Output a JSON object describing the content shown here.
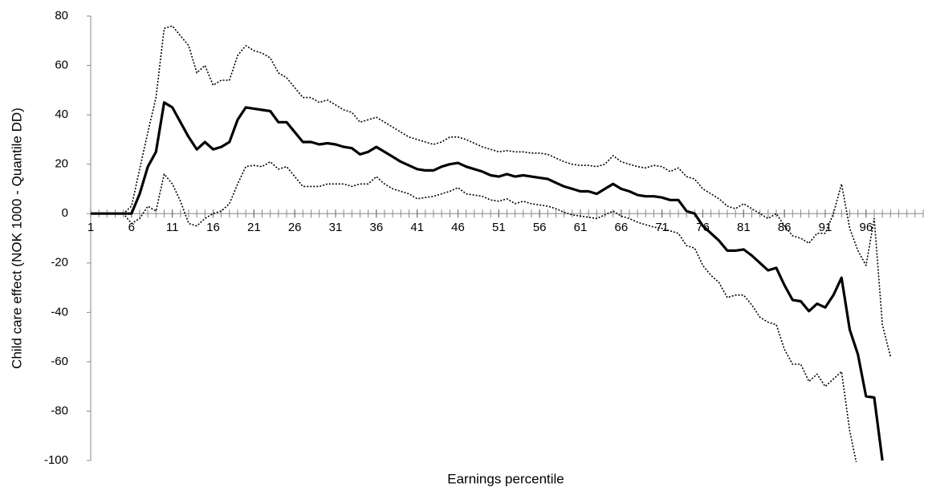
{
  "chart_data": {
    "type": "line",
    "x_label": "Earnings percentile",
    "y_label": "Child care effect (NOK 1000 - Quantile DD)",
    "x": [
      1,
      2,
      3,
      4,
      5,
      6,
      7,
      8,
      9,
      10,
      11,
      12,
      13,
      14,
      15,
      16,
      17,
      18,
      19,
      20,
      21,
      22,
      23,
      24,
      25,
      26,
      27,
      28,
      29,
      30,
      31,
      32,
      33,
      34,
      35,
      36,
      37,
      38,
      39,
      40,
      41,
      42,
      43,
      44,
      45,
      46,
      47,
      48,
      49,
      50,
      51,
      52,
      53,
      54,
      55,
      56,
      57,
      58,
      59,
      60,
      61,
      62,
      63,
      64,
      65,
      66,
      67,
      68,
      69,
      70,
      71,
      72,
      73,
      74,
      75,
      76,
      77,
      78,
      79,
      80,
      81,
      82,
      83,
      84,
      85,
      86,
      87,
      88,
      89,
      90,
      91,
      92,
      93,
      94,
      95,
      96,
      97,
      98,
      99
    ],
    "series": [
      {
        "color": "#000000",
        "style": "solid",
        "values": [
          0,
          0,
          0,
          0,
          0,
          0,
          8,
          19,
          25,
          45,
          43,
          37,
          31,
          26,
          29,
          26,
          27,
          29,
          38,
          43,
          42.5,
          42,
          41.5,
          37,
          37,
          33,
          29,
          29,
          28,
          28.5,
          28,
          27,
          26.5,
          24,
          25,
          27,
          25,
          23,
          21,
          19.5,
          18,
          17.5,
          17.5,
          19,
          20,
          20.5,
          19,
          18,
          17,
          15.5,
          15,
          16,
          15,
          15.5,
          15,
          14.5,
          14,
          12.5,
          11,
          10,
          9,
          9,
          8,
          10,
          12,
          10,
          9,
          7.5,
          7,
          7,
          6.5,
          5.5,
          5.5,
          1,
          0,
          -5,
          -8,
          -11,
          -15,
          -15,
          -14.5,
          -17,
          -20,
          -23,
          -22,
          -29,
          -35,
          -35.5,
          -39.5,
          -36.5,
          -38,
          -33,
          -26,
          -47,
          -57,
          -74,
          -74.5,
          -100,
          null
        ]
      },
      {
        "color": "#000000",
        "style": "dotted",
        "values": [
          0,
          0,
          0,
          0,
          0,
          3,
          18,
          33,
          47,
          75,
          76,
          72,
          68,
          57,
          60,
          52,
          54,
          54,
          64,
          68,
          66,
          65,
          63,
          57,
          55,
          51,
          47,
          47,
          45,
          46,
          44,
          42,
          41,
          37,
          38,
          39,
          37,
          35,
          33,
          31,
          30,
          29,
          28,
          29,
          31,
          31,
          30,
          28.5,
          27,
          26,
          25,
          25.5,
          25,
          25,
          24.5,
          24.5,
          24,
          22.5,
          21,
          20,
          19.5,
          19.5,
          19,
          20,
          23.5,
          21,
          20,
          19,
          18.5,
          19.5,
          19,
          17,
          18.5,
          15,
          14,
          10,
          8,
          6,
          3,
          2,
          4,
          2,
          0,
          -2,
          0,
          -5,
          -9,
          -10,
          -12,
          -8,
          -8,
          0,
          12,
          -6,
          -15,
          -21,
          -2,
          -45,
          -58
        ]
      },
      {
        "color": "#000000",
        "style": "dotted",
        "values": [
          0,
          0,
          0,
          0,
          0,
          -4,
          -2,
          3,
          1,
          16,
          12,
          5,
          -4,
          -5,
          -2,
          0,
          1,
          4,
          12,
          19,
          19.5,
          19,
          21,
          18,
          19,
          15,
          11,
          11,
          11,
          12,
          12,
          12,
          11,
          12,
          12,
          15,
          12,
          10,
          9,
          8,
          6,
          6.5,
          7,
          8,
          9,
          10.5,
          8,
          7.5,
          7,
          5.5,
          5,
          6,
          4,
          5,
          4,
          3.5,
          3,
          2,
          0.5,
          -0.5,
          -1,
          -1.5,
          -2,
          -0.5,
          1,
          -1,
          -2,
          -3.5,
          -4.5,
          -5.5,
          -6,
          -7,
          -8,
          -13,
          -14,
          -21,
          -25,
          -28,
          -34,
          -33,
          -33,
          -37,
          -42,
          -44,
          -45,
          -55,
          -61,
          -61,
          -68,
          -65,
          -70,
          -67,
          -64,
          -88,
          -104,
          null,
          null,
          null,
          null
        ]
      }
    ],
    "xlim": [
      1,
      103
    ],
    "xticks": [
      1,
      6,
      11,
      16,
      21,
      26,
      31,
      36,
      41,
      46,
      51,
      56,
      61,
      66,
      71,
      76,
      81,
      86,
      91,
      96
    ],
    "ylim": [
      -100,
      80
    ],
    "yticks": [
      -100,
      -80,
      -60,
      -40,
      -20,
      0,
      20,
      40,
      60,
      80
    ]
  }
}
